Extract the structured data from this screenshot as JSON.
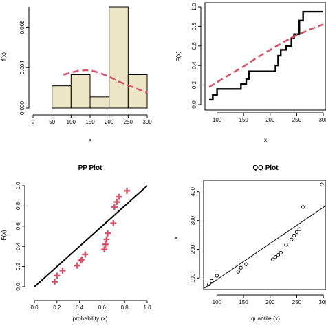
{
  "chart_data": [
    {
      "type": "histogram",
      "title": "",
      "xlabel": "x",
      "ylabel": "f(x)",
      "xlim": [
        0,
        300
      ],
      "ylim": [
        0,
        0.01
      ],
      "xticks": [
        "0",
        "50",
        "100",
        "150",
        "200",
        "250",
        "300"
      ],
      "yticks": [
        "0.000",
        "0.004",
        "0.008"
      ],
      "bins": [
        [
          50,
          100
        ],
        [
          100,
          150
        ],
        [
          150,
          200
        ],
        [
          200,
          250
        ],
        [
          250,
          300
        ]
      ],
      "values": [
        0.0022,
        0.0033,
        0.0011,
        0.01,
        0.0033
      ],
      "density_curve": {
        "x": [
          80,
          100,
          120,
          140,
          160,
          180,
          200,
          220,
          240,
          260,
          280,
          300
        ],
        "y": [
          0.0033,
          0.0035,
          0.0037,
          0.00375,
          0.00365,
          0.0034,
          0.0031,
          0.0027,
          0.0024,
          0.0021,
          0.0018,
          0.0015
        ]
      },
      "colors": {
        "bar_fill": "#ede6c6",
        "curve": "#d9546a"
      }
    },
    {
      "type": "line",
      "title": "",
      "xlabel": "x",
      "ylabel": "F(x)",
      "xlim": [
        85,
        300
      ],
      "ylim": [
        0,
        1
      ],
      "xticks": [
        "100",
        "150",
        "200",
        "250",
        "300"
      ],
      "yticks": [
        "0.0",
        "0.2",
        "0.4",
        "0.6",
        "0.8",
        "1.0"
      ],
      "series": [
        {
          "style": "step",
          "x": [
            85,
            92,
            100,
            140,
            145,
            155,
            160,
            205,
            210,
            215,
            220,
            230,
            240,
            245,
            255,
            262,
            300
          ],
          "y": [
            0.05,
            0.1,
            0.16,
            0.16,
            0.21,
            0.26,
            0.34,
            0.34,
            0.4,
            0.5,
            0.56,
            0.6,
            0.68,
            0.72,
            0.86,
            0.95,
            0.95
          ]
        },
        {
          "style": "dashed",
          "x": [
            85,
            100,
            125,
            150,
            175,
            200,
            225,
            250,
            275,
            300
          ],
          "y": [
            0.18,
            0.23,
            0.31,
            0.39,
            0.48,
            0.56,
            0.64,
            0.71,
            0.77,
            0.82
          ]
        }
      ],
      "colors": {
        "step": "#000000",
        "curve": "#d9546a"
      }
    },
    {
      "type": "scatter",
      "title": "PP Plot",
      "xlabel": "probability (x)",
      "ylabel": "F(x)",
      "xlim": [
        0,
        1
      ],
      "ylim": [
        0,
        1
      ],
      "xticks": [
        "0.0",
        "0.2",
        "0.4",
        "0.6",
        "0.8",
        "1.0"
      ],
      "yticks": [
        "0.0",
        "0.2",
        "0.4",
        "0.6",
        "0.8",
        "1.0"
      ],
      "points": {
        "x": [
          0.18,
          0.2,
          0.25,
          0.38,
          0.41,
          0.42,
          0.45,
          0.62,
          0.63,
          0.64,
          0.65,
          0.7,
          0.71,
          0.73,
          0.75,
          0.82
        ],
        "y": [
          0.05,
          0.11,
          0.16,
          0.21,
          0.26,
          0.27,
          0.32,
          0.37,
          0.42,
          0.47,
          0.53,
          0.63,
          0.79,
          0.84,
          0.89,
          0.95
        ]
      },
      "reference_line": {
        "x": [
          0,
          1
        ],
        "y": [
          0,
          1
        ]
      },
      "marker": "+",
      "colors": {
        "points": "#d9546a",
        "line": "#000000"
      }
    },
    {
      "type": "scatter",
      "title": "QQ Plot",
      "xlabel": "quantile (x)",
      "ylabel": "x",
      "xlim": [
        75,
        305
      ],
      "ylim": [
        60,
        440
      ],
      "xticks": [
        "100",
        "150",
        "200",
        "250",
        "300"
      ],
      "yticks": [
        "100",
        "200",
        "300",
        "400"
      ],
      "points": {
        "x": [
          85,
          90,
          100,
          140,
          145,
          155,
          205,
          210,
          215,
          220,
          230,
          240,
          245,
          250,
          255,
          262,
          297
        ],
        "y": [
          78,
          90,
          108,
          122,
          136,
          148,
          165,
          173,
          180,
          188,
          216,
          234,
          248,
          260,
          270,
          347,
          425
        ]
      },
      "reference_line": {
        "x": [
          75,
          305
        ],
        "y": [
          63,
          352
        ]
      },
      "marker": "o",
      "colors": {
        "points": "#000000",
        "line": "#000000"
      }
    }
  ]
}
